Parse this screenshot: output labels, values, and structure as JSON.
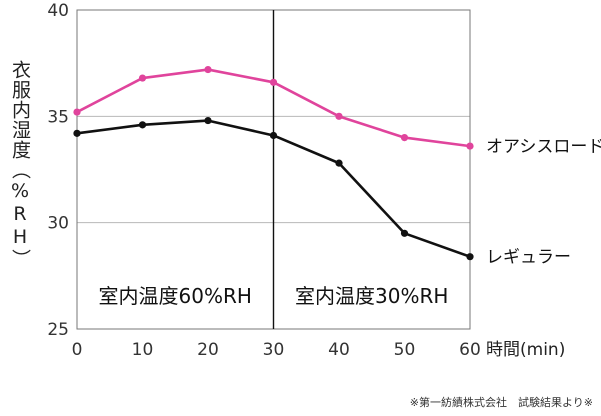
{
  "chart_data": {
    "type": "line",
    "ylabel": "衣服内湿度（%RH）",
    "xlabel": "時間(min)",
    "x": [
      0,
      10,
      20,
      30,
      40,
      50,
      60
    ],
    "xticks": [
      "0",
      "10",
      "20",
      "30",
      "40",
      "50",
      "60"
    ],
    "yticks": [
      "25",
      "30",
      "35",
      "40"
    ],
    "xlim": [
      0,
      60
    ],
    "ylim": [
      25,
      40
    ],
    "grid": "horizontal",
    "series": [
      {
        "name": "オアシスロード",
        "color": "#e0449c",
        "values": [
          35.2,
          36.8,
          37.2,
          36.6,
          35.0,
          34.0,
          33.6
        ]
      },
      {
        "name": "レギュラー",
        "color": "#111111",
        "values": [
          34.2,
          34.6,
          34.8,
          34.1,
          32.8,
          29.5,
          28.4
        ]
      }
    ],
    "divider_x": 30,
    "regions": [
      {
        "label": "室内温度60%RH",
        "x_from": 0,
        "x_to": 30
      },
      {
        "label": "室内温度30%RH",
        "x_from": 30,
        "x_to": 60
      }
    ]
  },
  "note": "※第一紡績株式会社　試験結果より※"
}
